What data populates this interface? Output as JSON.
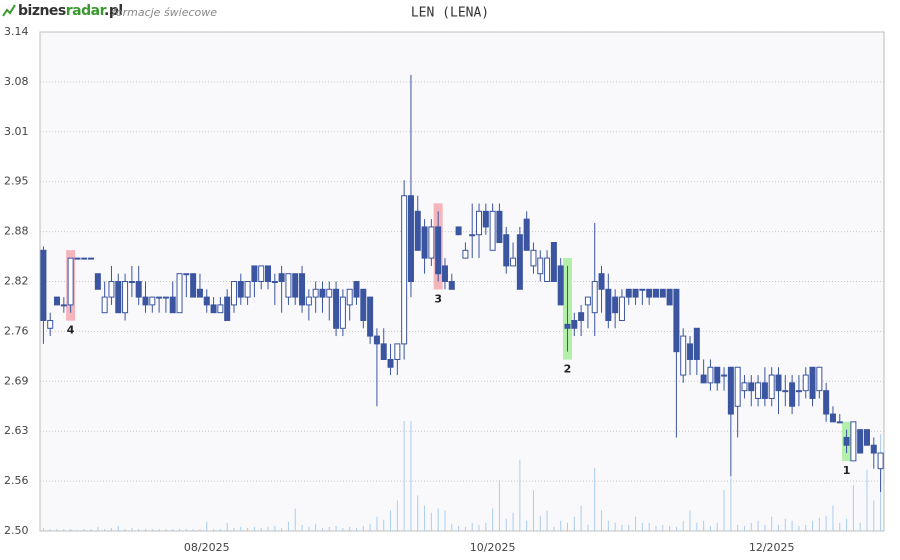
{
  "chart_data": {
    "type": "candlestick",
    "logo": [
      "biznes",
      "radar",
      ".pl"
    ],
    "subtitle": "formacje świecowe",
    "title": "LEN (LENA)",
    "ylim": [
      2.5,
      3.14
    ],
    "yticks": [
      {
        "value": 2.5,
        "label": "2.50"
      },
      {
        "value": 2.564,
        "label": "2.56"
      },
      {
        "value": 2.628,
        "label": "2.63"
      },
      {
        "value": 2.692,
        "label": "2.69"
      },
      {
        "value": 2.756,
        "label": "2.76"
      },
      2.82,
      {
        "value": 2.884,
        "label": "2.88"
      },
      {
        "value": 2.948,
        "label": "2.95"
      },
      {
        "value": 3.012,
        "label": "3.01"
      },
      {
        "value": 3.076,
        "label": "3.08"
      },
      3.14
    ],
    "grid": true,
    "up_color": "#ffffff",
    "down_color": "#3b55a0",
    "volume_color": "#a9cdf0",
    "categories": [
      null,
      null,
      null,
      null,
      null,
      null,
      null,
      null,
      null,
      null,
      null,
      null,
      null,
      null,
      null,
      null,
      null,
      null,
      null,
      null,
      null,
      null,
      null,
      null,
      "08/2025",
      null,
      null,
      null,
      null,
      null,
      null,
      null,
      null,
      null,
      null,
      null,
      null,
      null,
      null,
      null,
      null,
      null,
      null,
      null,
      null,
      null,
      null,
      null,
      null,
      null,
      null,
      null,
      null,
      null,
      null,
      null,
      null,
      null,
      null,
      null,
      null,
      null,
      null,
      null,
      null,
      null,
      "10/2025",
      null,
      null,
      null,
      null,
      null,
      null,
      null,
      null,
      null,
      null,
      null,
      null,
      null,
      null,
      null,
      null,
      null,
      null,
      null,
      null,
      null,
      null,
      null,
      null,
      null,
      null,
      null,
      null,
      null,
      null,
      null,
      null,
      null,
      null,
      null,
      null,
      null,
      null,
      null,
      null,
      "12/2025",
      null,
      null,
      null,
      null,
      null,
      null,
      null,
      null,
      null,
      null,
      null,
      null,
      null,
      null,
      null,
      null
    ],
    "open": [
      2.86,
      2.76,
      2.8,
      2.79,
      2.79,
      2.85,
      2.85,
      2.85,
      2.83,
      2.78,
      2.8,
      2.82,
      2.78,
      2.82,
      2.82,
      2.8,
      2.79,
      2.8,
      2.8,
      2.8,
      2.78,
      2.83,
      2.83,
      2.81,
      2.8,
      2.79,
      2.78,
      2.8,
      2.79,
      2.82,
      2.8,
      2.84,
      2.82,
      2.84,
      2.82,
      2.83,
      2.8,
      2.83,
      2.83,
      2.79,
      2.8,
      2.81,
      2.8,
      2.81,
      2.76,
      2.79,
      2.82,
      2.81,
      2.8,
      2.75,
      2.74,
      2.72,
      2.72,
      2.74,
      2.93,
      2.91,
      2.89,
      2.85,
      2.89,
      2.84,
      2.82,
      2.89,
      2.85,
      2.88,
      2.88,
      2.91,
      2.86,
      2.91,
      2.88,
      2.84,
      2.88,
      2.9,
      2.84,
      2.83,
      2.82,
      2.87,
      2.84,
      2.765,
      2.77,
      2.78,
      2.79,
      2.78,
      2.83,
      2.81,
      2.8,
      2.77,
      2.81,
      2.81,
      2.81,
      2.81,
      2.81,
      2.81,
      2.81,
      2.81,
      2.7,
      2.74,
      2.76,
      2.7,
      2.69,
      2.71,
      2.7,
      2.71,
      2.66,
      2.68,
      2.69,
      2.67,
      2.69,
      2.67,
      2.7,
      2.68,
      2.69,
      2.68,
      2.68,
      2.71,
      2.68,
      2.68,
      2.65,
      2.64,
      2.62,
      2.59,
      2.63,
      2.63,
      2.61,
      2.58
    ],
    "high": [
      2.865,
      2.78,
      2.8,
      2.8,
      2.85,
      2.85,
      2.85,
      2.85,
      2.83,
      2.82,
      2.84,
      2.83,
      2.83,
      2.84,
      2.84,
      2.82,
      2.8,
      2.8,
      2.8,
      2.82,
      2.83,
      2.83,
      2.83,
      2.83,
      2.81,
      2.8,
      2.8,
      2.81,
      2.82,
      2.83,
      2.82,
      2.84,
      2.84,
      2.84,
      2.83,
      2.84,
      2.83,
      2.83,
      2.84,
      2.81,
      2.82,
      2.82,
      2.82,
      2.82,
      2.81,
      2.81,
      2.82,
      2.81,
      2.8,
      2.76,
      2.76,
      2.74,
      2.74,
      2.95,
      3.085,
      2.93,
      2.9,
      2.9,
      2.91,
      2.85,
      2.83,
      2.89,
      2.87,
      2.92,
      2.92,
      2.92,
      2.92,
      2.92,
      2.89,
      2.87,
      2.89,
      2.91,
      2.87,
      2.86,
      2.86,
      2.87,
      2.85,
      2.84,
      2.78,
      2.79,
      2.8,
      2.895,
      2.84,
      2.83,
      2.81,
      2.81,
      2.81,
      2.81,
      2.81,
      2.81,
      2.81,
      2.81,
      2.81,
      2.81,
      2.76,
      2.75,
      2.76,
      2.72,
      2.72,
      2.71,
      2.71,
      2.71,
      2.71,
      2.7,
      2.7,
      2.7,
      2.71,
      2.71,
      2.71,
      2.7,
      2.7,
      2.7,
      2.71,
      2.71,
      2.71,
      2.69,
      2.66,
      2.65,
      2.63,
      2.64,
      2.63,
      2.63,
      2.62,
      2.6
    ],
    "low": [
      2.74,
      2.75,
      2.79,
      2.78,
      2.78,
      2.85,
      2.85,
      2.85,
      2.81,
      2.78,
      2.79,
      2.78,
      2.77,
      2.8,
      2.79,
      2.78,
      2.78,
      2.78,
      2.78,
      2.78,
      2.78,
      2.8,
      2.8,
      2.8,
      2.78,
      2.78,
      2.78,
      2.77,
      2.78,
      2.79,
      2.79,
      2.8,
      2.81,
      2.81,
      2.79,
      2.78,
      2.79,
      2.79,
      2.78,
      2.77,
      2.78,
      2.78,
      2.77,
      2.75,
      2.75,
      2.77,
      2.79,
      2.76,
      2.74,
      2.66,
      2.72,
      2.7,
      2.7,
      2.72,
      2.8,
      2.86,
      2.83,
      2.84,
      2.82,
      2.81,
      2.81,
      2.88,
      2.85,
      2.85,
      2.85,
      2.88,
      2.86,
      2.87,
      2.83,
      2.84,
      2.81,
      2.86,
      2.83,
      2.82,
      2.82,
      2.82,
      2.79,
      2.73,
      2.75,
      2.75,
      2.76,
      2.75,
      2.78,
      2.76,
      2.76,
      2.77,
      2.79,
      2.79,
      2.79,
      2.79,
      2.8,
      2.8,
      2.79,
      2.62,
      2.69,
      2.7,
      2.7,
      2.69,
      2.68,
      2.68,
      2.68,
      2.57,
      2.62,
      2.67,
      2.66,
      2.66,
      2.66,
      2.66,
      2.65,
      2.66,
      2.65,
      2.66,
      2.67,
      2.66,
      2.67,
      2.64,
      2.64,
      2.64,
      2.6,
      2.59,
      2.6,
      2.61,
      2.58,
      2.55
    ],
    "close": [
      2.77,
      2.77,
      2.79,
      2.79,
      2.85,
      2.85,
      2.85,
      2.85,
      2.81,
      2.8,
      2.82,
      2.78,
      2.82,
      2.82,
      2.8,
      2.79,
      2.8,
      2.8,
      2.8,
      2.78,
      2.83,
      2.83,
      2.8,
      2.8,
      2.79,
      2.78,
      2.79,
      2.77,
      2.82,
      2.8,
      2.82,
      2.82,
      2.84,
      2.82,
      2.82,
      2.82,
      2.83,
      2.8,
      2.79,
      2.8,
      2.81,
      2.8,
      2.81,
      2.76,
      2.8,
      2.81,
      2.8,
      2.77,
      2.75,
      2.74,
      2.72,
      2.71,
      2.74,
      2.93,
      2.82,
      2.86,
      2.85,
      2.89,
      2.83,
      2.82,
      2.81,
      2.88,
      2.86,
      2.88,
      2.91,
      2.89,
      2.91,
      2.87,
      2.84,
      2.85,
      2.81,
      2.86,
      2.86,
      2.85,
      2.85,
      2.82,
      2.79,
      2.76,
      2.76,
      2.77,
      2.8,
      2.82,
      2.81,
      2.77,
      2.78,
      2.8,
      2.8,
      2.8,
      2.81,
      2.8,
      2.8,
      2.8,
      2.79,
      2.73,
      2.75,
      2.72,
      2.72,
      2.69,
      2.71,
      2.69,
      2.7,
      2.65,
      2.71,
      2.69,
      2.68,
      2.69,
      2.67,
      2.7,
      2.68,
      2.68,
      2.66,
      2.68,
      2.7,
      2.67,
      2.71,
      2.65,
      2.64,
      2.64,
      2.61,
      2.64,
      2.6,
      2.61,
      2.6,
      2.6
    ],
    "volume": [
      3,
      2,
      2,
      2,
      2,
      1,
      2,
      2,
      4,
      2,
      3,
      5,
      2,
      3,
      2,
      2,
      2,
      2,
      2,
      2,
      2,
      2,
      2,
      2,
      9,
      2,
      2,
      8,
      3,
      4,
      3,
      4,
      3,
      4,
      5,
      3,
      9,
      22,
      6,
      4,
      7,
      3,
      4,
      5,
      3,
      4,
      3,
      5,
      7,
      14,
      11,
      20,
      30,
      108,
      108,
      35,
      25,
      18,
      22,
      20,
      7,
      5,
      4,
      8,
      6,
      8,
      22,
      50,
      12,
      18,
      70,
      10,
      40,
      15,
      20,
      4,
      10,
      8,
      14,
      25,
      6,
      62,
      20,
      10,
      8,
      6,
      6,
      14,
      8,
      8,
      5,
      6,
      5,
      4,
      10,
      20,
      8,
      10,
      5,
      8,
      40,
      52,
      6,
      5,
      8,
      10,
      6,
      14,
      6,
      12,
      10,
      5,
      6,
      10,
      13,
      15,
      25,
      8,
      12,
      45,
      8,
      60,
      30,
      95
    ],
    "patterns": [
      {
        "label": "4",
        "candle": 4,
        "color": "#f5b5bd"
      },
      {
        "label": "3",
        "candle": 58,
        "color": "#f5b5bd"
      },
      {
        "label": "2",
        "candle": 77,
        "color": "#b4efaa"
      },
      {
        "label": "1",
        "candle": 118,
        "color": "#b4efaa"
      }
    ]
  }
}
